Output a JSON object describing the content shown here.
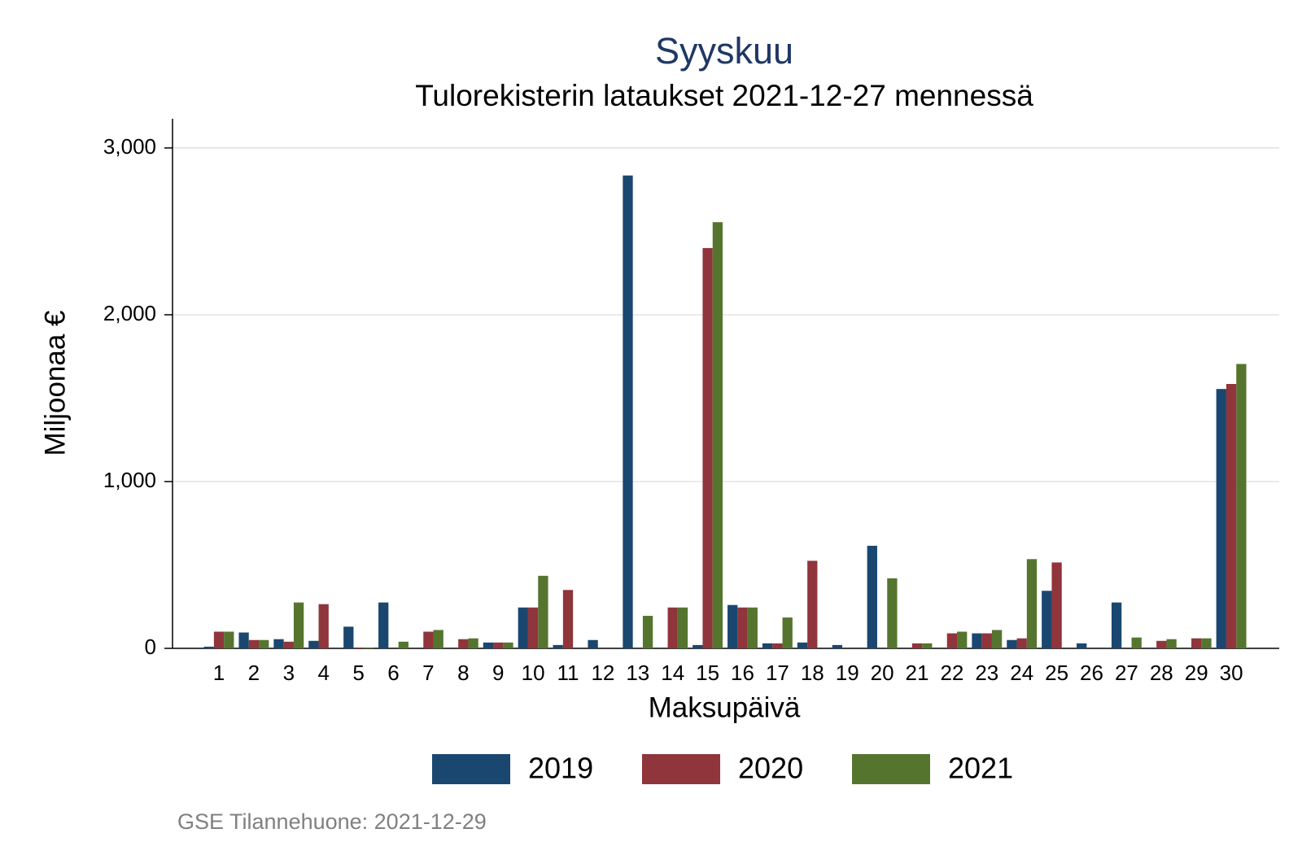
{
  "chart_data": {
    "type": "bar",
    "title": "Syyskuu",
    "subtitle": "Tulorekisterin lataukset 2021-12-27 mennessä",
    "x_label": "Maksupäivä",
    "y_label": "Miljoonaa €",
    "footer": "GSE Tilannehuone: 2021-12-29",
    "categories": [
      "1",
      "2",
      "3",
      "4",
      "5",
      "6",
      "7",
      "8",
      "9",
      "10",
      "11",
      "12",
      "13",
      "14",
      "15",
      "16",
      "17",
      "18",
      "19",
      "20",
      "21",
      "22",
      "23",
      "24",
      "25",
      "26",
      "27",
      "28",
      "29",
      "30"
    ],
    "series": [
      {
        "name": "2019",
        "color": "#1a476f",
        "values": [
          10,
          95,
          55,
          45,
          130,
          275,
          0,
          0,
          35,
          245,
          20,
          50,
          2835,
          0,
          20,
          260,
          30,
          35,
          20,
          615,
          0,
          0,
          90,
          50,
          345,
          30,
          275,
          0,
          0,
          1555
        ]
      },
      {
        "name": "2020",
        "color": "#90353b",
        "values": [
          100,
          50,
          40,
          265,
          5,
          0,
          100,
          55,
          35,
          245,
          350,
          0,
          0,
          245,
          2400,
          245,
          30,
          525,
          0,
          0,
          30,
          90,
          90,
          60,
          515,
          0,
          0,
          45,
          60,
          1585
        ]
      },
      {
        "name": "2021",
        "color": "#55752f",
        "values": [
          100,
          50,
          275,
          0,
          5,
          40,
          110,
          60,
          35,
          435,
          0,
          0,
          195,
          245,
          2555,
          245,
          185,
          0,
          0,
          420,
          30,
          100,
          110,
          535,
          0,
          0,
          65,
          55,
          60,
          1705
        ]
      }
    ],
    "ylim": [
      0,
      3175
    ],
    "yticks": [
      0,
      {
        "value": 1000,
        "label": "1,000"
      },
      {
        "value": 2000,
        "label": "2,000"
      },
      {
        "value": 3000,
        "label": "3,000"
      }
    ],
    "grid": true,
    "legend": "bottom"
  }
}
